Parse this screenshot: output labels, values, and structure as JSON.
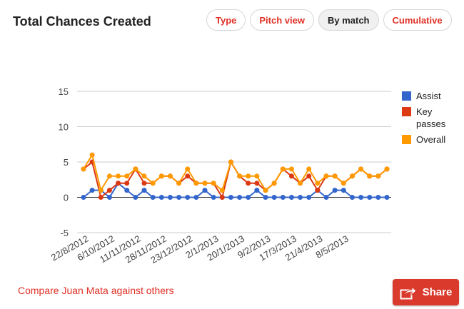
{
  "header": {
    "title": "Total Chances Created",
    "tabs": [
      {
        "label": "Type",
        "active": false
      },
      {
        "label": "Pitch view",
        "active": false
      },
      {
        "label": "By match",
        "active": true
      },
      {
        "label": "Cumulative",
        "active": false
      }
    ]
  },
  "footer": {
    "compare_link": "Compare Juan Mata against others",
    "share_label": "Share",
    "share_icon": "share-arrow-icon"
  },
  "colors": {
    "accent": "#e03127",
    "assist": "#3366cc",
    "key_passes": "#dc3912",
    "overall": "#ff9900"
  },
  "chart_data": {
    "type": "line",
    "title": "",
    "xlabel": "",
    "ylabel": "",
    "ylim": [
      -5,
      15
    ],
    "yticks": [
      15,
      10,
      5,
      0,
      -5
    ],
    "grid": true,
    "legend_position": "right",
    "x_labels": [
      "22/8/2012",
      "6/10/2012",
      "11/11/2012",
      "28/11/2012",
      "23/12/2012",
      "2/1/2013",
      "20/1/2013",
      "9/2/2013",
      "17/3/2013",
      "21/4/2013",
      "8/5/2013"
    ],
    "x_label_match_index": [
      0,
      3,
      6,
      9,
      12,
      15,
      18,
      21,
      24,
      27,
      30
    ],
    "series": [
      {
        "name": "Assist",
        "color": "#3366cc",
        "values": [
          0,
          1,
          1,
          0,
          2,
          1,
          0,
          1,
          0,
          0,
          0,
          0,
          0,
          0,
          1,
          0,
          0,
          0,
          0,
          0,
          1,
          0,
          0,
          0,
          0,
          0,
          0,
          1,
          0,
          1,
          1,
          0,
          0,
          0,
          0,
          0
        ]
      },
      {
        "name": "Key passes",
        "color": "#dc3912",
        "values": [
          4,
          5,
          0,
          1,
          2,
          2,
          4,
          2,
          2,
          3,
          3,
          2,
          3,
          2,
          2,
          2,
          0,
          5,
          3,
          2,
          2,
          1,
          2,
          4,
          3,
          2,
          3,
          1,
          3,
          3,
          2,
          3,
          4,
          3,
          3,
          4
        ]
      },
      {
        "name": "Overall",
        "color": "#ff9900",
        "values": [
          4,
          6,
          1,
          3,
          3,
          3,
          4,
          3,
          2,
          3,
          3,
          2,
          4,
          2,
          2,
          2,
          1,
          5,
          3,
          3,
          3,
          1,
          2,
          4,
          4,
          2,
          4,
          2,
          3,
          3,
          2,
          3,
          4,
          3,
          3,
          4
        ]
      }
    ]
  }
}
